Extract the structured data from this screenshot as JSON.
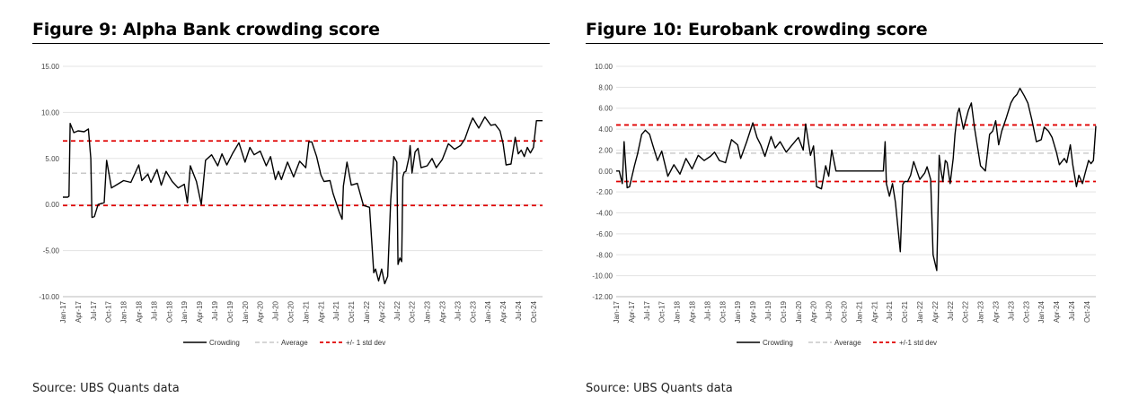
{
  "figures": [
    {
      "title": "Figure 9: Alpha Bank crowding score",
      "source": "Source: UBS Quants data"
    },
    {
      "title": "Figure 10: Eurobank crowding score",
      "source": "Source: UBS Quants data"
    }
  ],
  "chart_data": [
    {
      "type": "line",
      "ylim": [
        -10,
        15
      ],
      "yticks": [
        "15.00",
        "10.00",
        "5.00",
        "0.00",
        "-5.00",
        "-10.00"
      ],
      "ytick_values": [
        15,
        10,
        5,
        0,
        -5,
        -10
      ],
      "xlim": [
        2017.0,
        2024.9
      ],
      "xticks": [
        "Jan-17",
        "Apr-17",
        "Jul-17",
        "Oct-17",
        "Jan-18",
        "Apr-18",
        "Jul-18",
        "Oct-18",
        "Jan-19",
        "Apr-19",
        "Jul-19",
        "Oct-19",
        "Jan-20",
        "Apr-20",
        "Jul-20",
        "Oct-20",
        "Jan-21",
        "Apr-21",
        "Jul-21",
        "Oct-21",
        "Jan-22",
        "Apr-22",
        "Jul-22",
        "Oct-22",
        "Jan-23",
        "Apr-23",
        "Jul-23",
        "Oct-23",
        "Jan-24",
        "Apr-24",
        "Jul-24",
        "Oct-24"
      ],
      "grid": true,
      "legend_position": "bottom",
      "series": [
        {
          "name": "Crowding",
          "color": "#000000",
          "style": "solid",
          "x": [
            2017.0,
            2017.08,
            2017.1,
            2017.12,
            2017.18,
            2017.25,
            2017.35,
            2017.42,
            2017.46,
            2017.48,
            2017.52,
            2017.58,
            2017.68,
            2017.72,
            2017.8,
            2017.9,
            2018.0,
            2018.12,
            2018.25,
            2018.3,
            2018.4,
            2018.45,
            2018.55,
            2018.62,
            2018.7,
            2018.8,
            2018.9,
            2019.0,
            2019.05,
            2019.1,
            2019.2,
            2019.28,
            2019.35,
            2019.45,
            2019.55,
            2019.62,
            2019.7,
            2019.8,
            2019.9,
            2020.0,
            2020.08,
            2020.15,
            2020.25,
            2020.35,
            2020.42,
            2020.5,
            2020.55,
            2020.6,
            2020.7,
            2020.8,
            2020.9,
            2021.0,
            2021.05,
            2021.1,
            2021.18,
            2021.25,
            2021.3,
            2021.4,
            2021.45,
            2021.55,
            2021.6,
            2021.62,
            2021.68,
            2021.75,
            2021.85,
            2021.95,
            2022.05,
            2022.12,
            2022.15,
            2022.2,
            2022.25,
            2022.3,
            2022.35,
            2022.4,
            2022.45,
            2022.5,
            2022.52,
            2022.55,
            2022.58,
            2022.6,
            2022.62,
            2022.65,
            2022.7,
            2022.72,
            2022.75,
            2022.8,
            2022.85,
            2022.9,
            2023.0,
            2023.08,
            2023.15,
            2023.25,
            2023.35,
            2023.45,
            2023.55,
            2023.62,
            2023.7,
            2023.75,
            2023.85,
            2023.95,
            2024.05,
            2024.12,
            2024.2,
            2024.25,
            2024.3,
            2024.38,
            2024.45,
            2024.5,
            2024.55,
            2024.6,
            2024.65,
            2024.7,
            2024.75,
            2024.8,
            2024.85,
            2024.88,
            2024.9
          ],
          "values": [
            0.8,
            0.8,
            0.9,
            8.8,
            7.8,
            8.0,
            7.9,
            8.2,
            5.0,
            -1.4,
            -1.3,
            0.0,
            0.2,
            4.8,
            1.8,
            2.2,
            2.6,
            2.4,
            4.3,
            2.6,
            3.3,
            2.4,
            3.8,
            2.1,
            3.6,
            2.5,
            1.8,
            2.2,
            0.2,
            4.2,
            2.5,
            0.0,
            4.8,
            5.4,
            4.2,
            5.5,
            4.3,
            5.6,
            6.7,
            4.6,
            6.2,
            5.4,
            5.8,
            4.2,
            5.2,
            2.7,
            3.6,
            2.7,
            4.6,
            3.0,
            4.7,
            4.0,
            6.8,
            6.8,
            5.2,
            3.2,
            2.5,
            2.6,
            1.2,
            -0.8,
            -1.6,
            2.0,
            4.6,
            2.1,
            2.3,
            -0.1,
            -0.3,
            -7.4,
            -7.0,
            -8.3,
            -7.0,
            -8.6,
            -7.8,
            0.5,
            5.2,
            4.6,
            -6.5,
            -5.8,
            -6.2,
            3.0,
            3.5,
            3.6,
            5.1,
            6.4,
            3.4,
            5.7,
            6.1,
            4.0,
            4.2,
            5.0,
            4.0,
            4.9,
            6.6,
            6.0,
            6.4,
            7.1,
            8.6,
            9.4,
            8.3,
            9.5,
            8.6,
            8.7,
            8.0,
            6.6,
            4.3,
            4.4,
            7.3,
            5.5,
            5.9,
            5.2,
            6.2,
            5.6,
            6.2,
            9.1,
            9.1,
            9.1,
            9.1
          ]
        },
        {
          "name": "Average",
          "color": "#c8c8c8",
          "style": "dash",
          "value": 3.4
        },
        {
          "name": "+/- 1 std dev",
          "color": "#e00000",
          "style": "dash",
          "values": [
            6.9,
            -0.1
          ]
        }
      ]
    },
    {
      "type": "line",
      "ylim": [
        -12,
        10
      ],
      "yticks": [
        "10.00",
        "8.00",
        "6.00",
        "4.00",
        "2.00",
        "0.00",
        "-2.00",
        "-4.00",
        "-6.00",
        "-8.00",
        "-10.00",
        "-12.00"
      ],
      "ytick_values": [
        10,
        8,
        6,
        4,
        2,
        0,
        -2,
        -4,
        -6,
        -8,
        -10,
        -12
      ],
      "xlim": [
        2017.0,
        2024.9
      ],
      "xticks": [
        "Jan-17",
        "Apr-17",
        "Jul-17",
        "Oct-17",
        "Jan-18",
        "Apr-18",
        "Jul-18",
        "Oct-18",
        "Jan-19",
        "Apr-19",
        "Jul-19",
        "Oct-19",
        "Jan-20",
        "Apr-20",
        "Jul-20",
        "Oct-20",
        "Jan-21",
        "Apr-21",
        "Jul-21",
        "Oct-21",
        "Jan-22",
        "Apr-22",
        "Jul-22",
        "Oct-22",
        "Jan-23",
        "Apr-23",
        "Jul-23",
        "Oct-23",
        "Jan-24",
        "Apr-24",
        "Jul-24",
        "Oct-24"
      ],
      "grid": true,
      "legend_position": "bottom",
      "series": [
        {
          "name": "Crowding",
          "color": "#000000",
          "style": "solid",
          "x": [
            2017.0,
            2017.05,
            2017.1,
            2017.13,
            2017.18,
            2017.22,
            2017.3,
            2017.35,
            2017.42,
            2017.48,
            2017.55,
            2017.6,
            2017.68,
            2017.75,
            2017.85,
            2017.95,
            2018.05,
            2018.15,
            2018.25,
            2018.35,
            2018.45,
            2018.55,
            2018.62,
            2018.7,
            2018.8,
            2018.9,
            2019.0,
            2019.05,
            2019.15,
            2019.25,
            2019.32,
            2019.38,
            2019.45,
            2019.55,
            2019.62,
            2019.7,
            2019.8,
            2019.9,
            2020.0,
            2020.08,
            2020.12,
            2020.2,
            2020.25,
            2020.3,
            2020.38,
            2020.45,
            2020.5,
            2020.55,
            2020.62,
            2020.7,
            2020.8,
            2020.9,
            2021.0,
            2021.1,
            2021.2,
            2021.3,
            2021.4,
            2021.43,
            2021.45,
            2021.5,
            2021.55,
            2021.6,
            2021.68,
            2021.72,
            2021.75,
            2021.8,
            2021.85,
            2021.9,
            2022.0,
            2022.08,
            2022.12,
            2022.18,
            2022.22,
            2022.28,
            2022.32,
            2022.35,
            2022.38,
            2022.42,
            2022.45,
            2022.5,
            2022.55,
            2022.58,
            2022.62,
            2022.65,
            2022.72,
            2022.8,
            2022.85,
            2022.9,
            2023.0,
            2023.08,
            2023.15,
            2023.2,
            2023.25,
            2023.3,
            2023.35,
            2023.42,
            2023.5,
            2023.55,
            2023.6,
            2023.65,
            2023.72,
            2023.78,
            2023.85,
            2023.92,
            2024.0,
            2024.05,
            2024.12,
            2024.18,
            2024.25,
            2024.3,
            2024.38,
            2024.42,
            2024.48,
            2024.52,
            2024.58,
            2024.62,
            2024.68,
            2024.72,
            2024.78,
            2024.82,
            2024.86,
            2024.9
          ],
          "values": [
            0.0,
            0.0,
            -1.2,
            2.8,
            -1.6,
            -1.5,
            0.5,
            1.6,
            3.5,
            3.9,
            3.5,
            2.5,
            1.0,
            1.9,
            -0.5,
            0.6,
            -0.3,
            1.2,
            0.2,
            1.5,
            1.0,
            1.4,
            1.8,
            1.0,
            0.8,
            3.0,
            2.5,
            1.2,
            2.8,
            4.6,
            3.2,
            2.5,
            1.4,
            3.3,
            2.2,
            2.8,
            1.8,
            2.5,
            3.2,
            2.0,
            4.5,
            1.5,
            2.4,
            -1.5,
            -1.7,
            0.5,
            -0.5,
            2.0,
            0.0,
            0.0,
            0.0,
            0.0,
            0.0,
            0.0,
            0.0,
            0.0,
            0.0,
            2.8,
            -1.2,
            -2.4,
            -1.2,
            -3.0,
            -7.7,
            -1.3,
            -1.0,
            -1.0,
            -0.4,
            0.9,
            -0.8,
            -0.2,
            0.4,
            -0.8,
            -8.0,
            -9.5,
            1.5,
            0.0,
            -1.0,
            1.0,
            0.8,
            -1.2,
            1.2,
            3.5,
            5.5,
            6.0,
            4.0,
            5.8,
            6.5,
            4.2,
            0.5,
            0.0,
            3.5,
            3.8,
            4.8,
            2.5,
            3.8,
            5.0,
            6.5,
            7.0,
            7.3,
            7.9,
            7.2,
            6.5,
            4.8,
            2.8,
            3.0,
            4.2,
            3.8,
            3.2,
            1.8,
            0.6,
            1.2,
            0.8,
            2.5,
            0.6,
            -1.5,
            -0.4,
            -1.2,
            -0.3,
            1.0,
            0.7,
            1.0,
            4.3
          ]
        },
        {
          "name": "Average",
          "color": "#c8c8c8",
          "style": "dash",
          "value": 1.7
        },
        {
          "name": "+/-1 std dev",
          "color": "#e00000",
          "style": "dash",
          "values": [
            4.4,
            -1.0
          ]
        }
      ]
    }
  ]
}
